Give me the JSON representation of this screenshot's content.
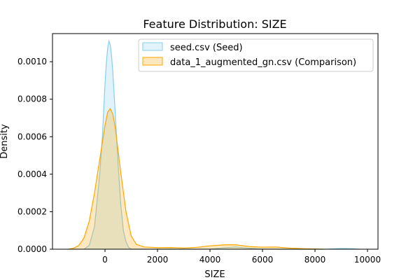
{
  "chart_data": {
    "type": "area",
    "title": "Feature Distribution: SIZE",
    "xlabel": "SIZE",
    "ylabel": "Density",
    "xlim": [
      -2000,
      10400
    ],
    "ylim": [
      0,
      0.00115
    ],
    "xticks": [
      0,
      2000,
      4000,
      6000,
      8000,
      10000
    ],
    "yticks": [
      0,
      0.0002,
      0.0004,
      0.0006,
      0.0008,
      0.001
    ],
    "ytick_labels": [
      "0.0000",
      "0.0002",
      "0.0004",
      "0.0006",
      "0.0008",
      "0.0010"
    ],
    "grid": false,
    "legend_position": "top-right",
    "series": [
      {
        "name": "seed.csv (Seed)",
        "color": "#87ceeb",
        "x": [
          -800,
          -600,
          -400,
          -200,
          -100,
          0,
          50,
          100,
          150,
          200,
          250,
          300,
          400,
          500,
          600,
          700,
          800,
          900,
          1000,
          1200,
          1500,
          2000,
          3000,
          4000,
          4500,
          5000,
          5500,
          6000,
          7000,
          8000,
          8500,
          9000,
          9400,
          9700
        ],
        "y": [
          0.0,
          2e-05,
          0.00012,
          0.0004,
          0.0006,
          0.00088,
          0.00099,
          0.00107,
          0.00111,
          0.00109,
          0.00103,
          0.00094,
          0.0007,
          0.00045,
          0.00024,
          0.0001,
          4e-05,
          1e-05,
          0.0,
          0.0,
          0.0,
          0.0,
          0.0,
          5e-07,
          7e-06,
          1.2e-05,
          5e-06,
          5e-07,
          0.0,
          0.0,
          5e-07,
          4e-06,
          3e-06,
          0.0
        ]
      },
      {
        "name": "data_1_augmented_gn.csv (Comparison)",
        "color": "#ffa500",
        "x": [
          -1400,
          -1200,
          -1000,
          -800,
          -600,
          -400,
          -200,
          0,
          100,
          200,
          300,
          400,
          600,
          800,
          1000,
          1200,
          1500,
          1800,
          2000,
          2500,
          3000,
          3500,
          4000,
          4500,
          4800,
          5000,
          5500,
          6000,
          6500,
          7000,
          7500,
          8000,
          8300
        ],
        "y": [
          0.0,
          5e-06,
          2e-05,
          6e-05,
          0.00015,
          0.0003,
          0.00048,
          0.00066,
          0.00073,
          0.00075,
          0.00072,
          0.00064,
          0.00041,
          0.0002,
          7e-05,
          2.5e-05,
          1.2e-05,
          1e-05,
          8e-06,
          9e-06,
          6e-06,
          1e-05,
          1.8e-05,
          2.3e-05,
          2.4e-05,
          2.3e-05,
          1.4e-05,
          1.1e-05,
          1.2e-05,
          6e-06,
          3e-06,
          1e-06,
          0.0
        ]
      }
    ]
  }
}
